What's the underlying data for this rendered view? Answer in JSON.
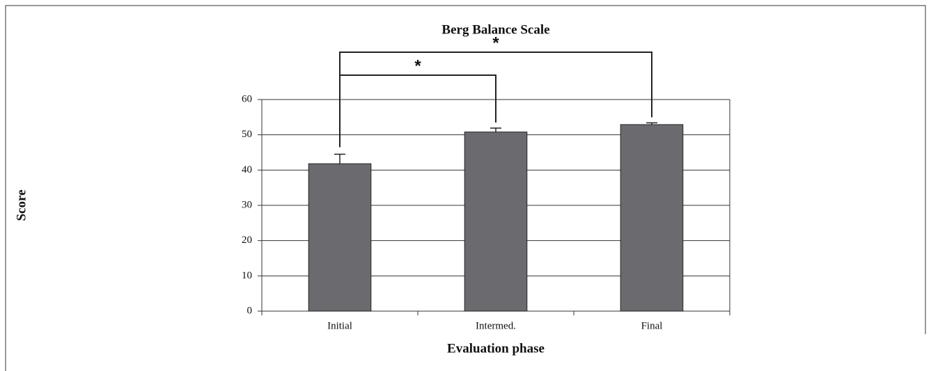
{
  "chart_data": {
    "type": "bar",
    "title": "Berg Balance Scale",
    "xlabel": "Evaluation phase",
    "ylabel": "Score",
    "categories": [
      "Initial",
      "Intermed.",
      "Final"
    ],
    "values": [
      41.8,
      50.8,
      52.9
    ],
    "errors": [
      2.7,
      1.1,
      0.5
    ],
    "color": "#6b6b6f",
    "ylim": [
      0,
      60
    ],
    "yticks": [
      0,
      10,
      20,
      30,
      40,
      50,
      60
    ],
    "grid": true,
    "annotations": [
      {
        "text": "*"
      },
      {
        "text": "*"
      }
    ]
  }
}
